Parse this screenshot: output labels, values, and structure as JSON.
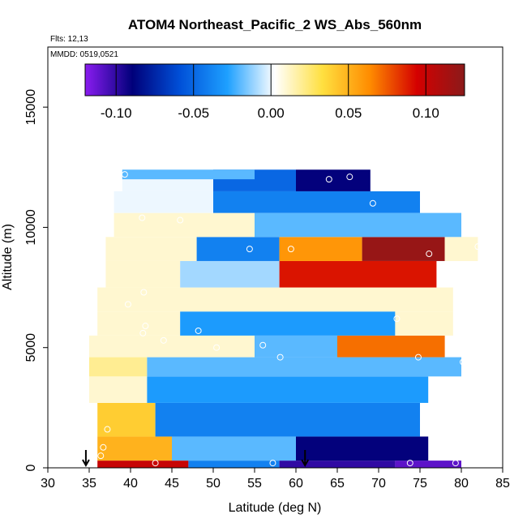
{
  "chart_data": {
    "type": "heatmap",
    "title": "ATOM4 Northeast_Pacific_2 WS_Abs_560nm",
    "flights_label": "Flts: 12,13",
    "dates_label": "MMDD: 0519,0521",
    "xlabel": "Latitude (deg N)",
    "ylabel": "Altitude (m)",
    "xlim": [
      30,
      85
    ],
    "ylim": [
      0,
      17500
    ],
    "x_ticks": [
      "30",
      "35",
      "40",
      "45",
      "50",
      "55",
      "60",
      "65",
      "70",
      "75",
      "80",
      "85"
    ],
    "y_ticks": [
      "0",
      "5000",
      "10000",
      "15000"
    ],
    "colorbar": {
      "range": [
        -0.12,
        0.125
      ],
      "ticks": [
        "-0.10",
        "-0.05",
        "0.00",
        "0.05",
        "0.10"
      ],
      "tick_values": [
        -0.1,
        -0.05,
        0.0,
        0.05,
        0.1
      ],
      "colors": [
        "#8a1cf0",
        "#00007a",
        "#0050d8",
        "#1ea0ff",
        "#ffffff",
        "#ffe040",
        "#ff8c00",
        "#d40000",
        "#8b1a1a"
      ]
    },
    "arrows_latitude": [
      34.6,
      61.1
    ],
    "cells": [
      {
        "lat_min": 36,
        "lat_max": 47,
        "alt_min": 0,
        "alt_max": 300,
        "value": 0.1
      },
      {
        "lat_min": 47,
        "lat_max": 58,
        "alt_min": 0,
        "alt_max": 300,
        "value": -0.04
      },
      {
        "lat_min": 58,
        "lat_max": 72,
        "alt_min": 0,
        "alt_max": 300,
        "value": -0.1
      },
      {
        "lat_min": 72,
        "lat_max": 80,
        "alt_min": 0,
        "alt_max": 300,
        "value": -0.11
      },
      {
        "lat_min": 36,
        "lat_max": 45,
        "alt_min": 300,
        "alt_max": 1300,
        "value": 0.05
      },
      {
        "lat_min": 45,
        "lat_max": 60,
        "alt_min": 300,
        "alt_max": 1300,
        "value": -0.02
      },
      {
        "lat_min": 60,
        "lat_max": 76,
        "alt_min": 300,
        "alt_max": 1300,
        "value": -0.09
      },
      {
        "lat_min": 36,
        "lat_max": 43,
        "alt_min": 1300,
        "alt_max": 2700,
        "value": 0.04
      },
      {
        "lat_min": 43,
        "lat_max": 75,
        "alt_min": 1300,
        "alt_max": 2700,
        "value": -0.04
      },
      {
        "lat_min": 35,
        "lat_max": 42,
        "alt_min": 2700,
        "alt_max": 3800,
        "value": 0.01
      },
      {
        "lat_min": 42,
        "lat_max": 76,
        "alt_min": 2700,
        "alt_max": 3800,
        "value": -0.03
      },
      {
        "lat_min": 35,
        "lat_max": 42,
        "alt_min": 3800,
        "alt_max": 4600,
        "value": 0.02
      },
      {
        "lat_min": 42,
        "lat_max": 80,
        "alt_min": 3800,
        "alt_max": 4600,
        "value": -0.02
      },
      {
        "lat_min": 35,
        "lat_max": 55,
        "alt_min": 4600,
        "alt_max": 5500,
        "value": 0.01
      },
      {
        "lat_min": 55,
        "lat_max": 65,
        "alt_min": 4600,
        "alt_max": 5500,
        "value": -0.02
      },
      {
        "lat_min": 65,
        "lat_max": 78,
        "alt_min": 4600,
        "alt_max": 5500,
        "value": 0.07
      },
      {
        "lat_min": 36,
        "lat_max": 46,
        "alt_min": 5500,
        "alt_max": 6500,
        "value": 0.01
      },
      {
        "lat_min": 46,
        "lat_max": 72,
        "alt_min": 5500,
        "alt_max": 6500,
        "value": -0.03
      },
      {
        "lat_min": 72,
        "lat_max": 79,
        "alt_min": 5500,
        "alt_max": 6500,
        "value": 0.01
      },
      {
        "lat_min": 36,
        "lat_max": 79,
        "alt_min": 6500,
        "alt_max": 7500,
        "value": 0.01
      },
      {
        "lat_min": 37,
        "lat_max": 46,
        "alt_min": 7500,
        "alt_max": 8600,
        "value": 0.01
      },
      {
        "lat_min": 46,
        "lat_max": 58,
        "alt_min": 7500,
        "alt_max": 8600,
        "value": -0.01
      },
      {
        "lat_min": 58,
        "lat_max": 77,
        "alt_min": 7500,
        "alt_max": 8600,
        "value": 0.09
      },
      {
        "lat_min": 37,
        "lat_max": 48,
        "alt_min": 8600,
        "alt_max": 9600,
        "value": 0.01
      },
      {
        "lat_min": 48,
        "lat_max": 58,
        "alt_min": 8600,
        "alt_max": 9600,
        "value": -0.04
      },
      {
        "lat_min": 58,
        "lat_max": 68,
        "alt_min": 8600,
        "alt_max": 9600,
        "value": 0.06
      },
      {
        "lat_min": 68,
        "lat_max": 78,
        "alt_min": 8600,
        "alt_max": 9600,
        "value": 0.12
      },
      {
        "lat_min": 78,
        "lat_max": 82,
        "alt_min": 8600,
        "alt_max": 9600,
        "value": 0.01
      },
      {
        "lat_min": 38,
        "lat_max": 55,
        "alt_min": 9600,
        "alt_max": 10600,
        "value": 0.01
      },
      {
        "lat_min": 55,
        "lat_max": 80,
        "alt_min": 9600,
        "alt_max": 10600,
        "value": -0.02
      },
      {
        "lat_min": 38,
        "lat_max": 50,
        "alt_min": 10600,
        "alt_max": 11500,
        "value": 0.0
      },
      {
        "lat_min": 50,
        "lat_max": 75,
        "alt_min": 10600,
        "alt_max": 11500,
        "value": -0.04
      },
      {
        "lat_min": 39,
        "lat_max": 50,
        "alt_min": 11500,
        "alt_max": 12400,
        "value": 0.0
      },
      {
        "lat_min": 50,
        "lat_max": 60,
        "alt_min": 11500,
        "alt_max": 12400,
        "value": -0.05
      },
      {
        "lat_min": 60,
        "lat_max": 69,
        "alt_min": 11500,
        "alt_max": 12400,
        "value": -0.09
      },
      {
        "lat_min": 39,
        "lat_max": 55,
        "alt_min": 12000,
        "alt_max": 12400,
        "value": -0.02
      }
    ],
    "sample_points": [
      {
        "lat": 36.4,
        "alt": 500
      },
      {
        "lat": 36.7,
        "alt": 850
      },
      {
        "lat": 37.2,
        "alt": 1600
      },
      {
        "lat": 43.0,
        "alt": 200
      },
      {
        "lat": 57.2,
        "alt": 200
      },
      {
        "lat": 73.8,
        "alt": 200
      },
      {
        "lat": 79.3,
        "alt": 200
      },
      {
        "lat": 39.7,
        "alt": 6800
      },
      {
        "lat": 41.5,
        "alt": 5600
      },
      {
        "lat": 41.8,
        "alt": 5900
      },
      {
        "lat": 44.0,
        "alt": 5300
      },
      {
        "lat": 48.2,
        "alt": 5700
      },
      {
        "lat": 50.4,
        "alt": 5000
      },
      {
        "lat": 56.0,
        "alt": 5100
      },
      {
        "lat": 58.1,
        "alt": 4600
      },
      {
        "lat": 72.2,
        "alt": 6200
      },
      {
        "lat": 74.8,
        "alt": 4600
      },
      {
        "lat": 80.2,
        "alt": 4400
      },
      {
        "lat": 41.6,
        "alt": 7300
      },
      {
        "lat": 54.4,
        "alt": 9100
      },
      {
        "lat": 59.4,
        "alt": 9100
      },
      {
        "lat": 76.1,
        "alt": 8900
      },
      {
        "lat": 82.0,
        "alt": 9200
      },
      {
        "lat": 41.4,
        "alt": 10400
      },
      {
        "lat": 46.0,
        "alt": 10300
      },
      {
        "lat": 69.3,
        "alt": 11000
      },
      {
        "lat": 39.3,
        "alt": 12200
      },
      {
        "lat": 64.0,
        "alt": 12000
      },
      {
        "lat": 66.5,
        "alt": 12100
      }
    ]
  }
}
